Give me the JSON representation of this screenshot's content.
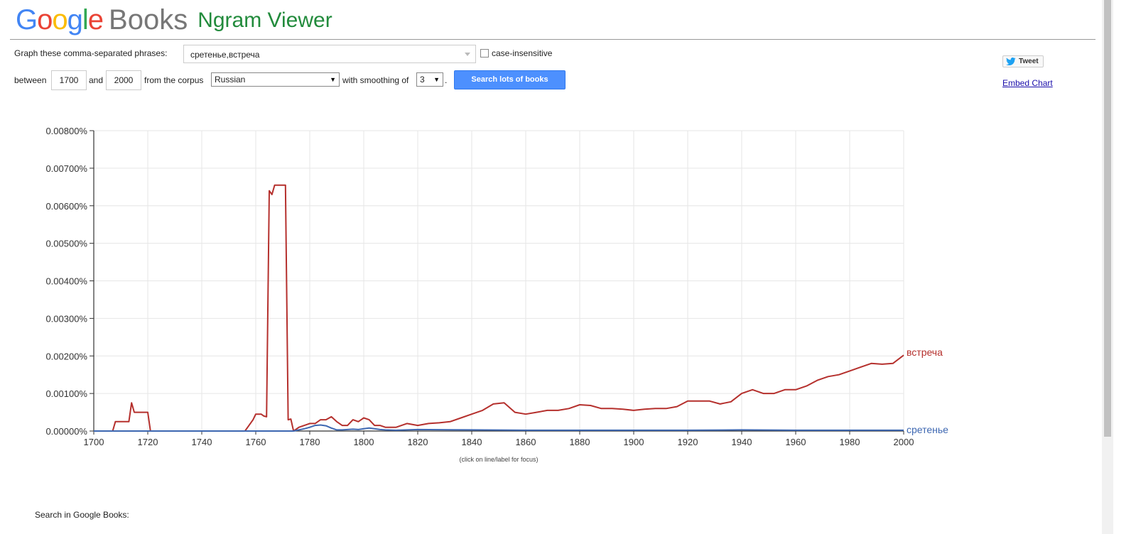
{
  "brand": {
    "google_letters": [
      {
        "ch": "G",
        "color": "#4285F4"
      },
      {
        "ch": "o",
        "color": "#EA4335"
      },
      {
        "ch": "o",
        "color": "#FBBC05"
      },
      {
        "ch": "g",
        "color": "#4285F4"
      },
      {
        "ch": "l",
        "color": "#34A853"
      },
      {
        "ch": "e",
        "color": "#EA4335"
      }
    ],
    "books": "Books",
    "app_title": "Ngram Viewer"
  },
  "form": {
    "phrases_label": "Graph these comma-separated phrases:",
    "phrases_value": "сретенье,встреча",
    "case_label": "case-insensitive",
    "between_label": "between",
    "start_year": "1700",
    "and_label": "and",
    "end_year": "2000",
    "corpus_label": "from the corpus",
    "corpus_value": "Russian",
    "smoothing_label": "with smoothing of",
    "smoothing_value": "3",
    "smoothing_period": ".",
    "search_button": "Search lots of books"
  },
  "share": {
    "tweet_label": "Tweet",
    "embed_label": "Embed Chart"
  },
  "chart_hint": "(click on line/label for focus)",
  "footer_label": "Search in Google Books:",
  "chart_data": {
    "type": "line",
    "title": "",
    "xlabel": "",
    "ylabel": "",
    "xlim": [
      1700,
      2000
    ],
    "ylim": [
      0,
      0.008
    ],
    "y_tick_labels": [
      "0.00000%",
      "0.00100%",
      "0.00200%",
      "0.00300%",
      "0.00400%",
      "0.00500%",
      "0.00600%",
      "0.00700%",
      "0.00800%"
    ],
    "y_ticks": [
      0,
      0.001,
      0.002,
      0.003,
      0.004,
      0.005,
      0.006,
      0.007,
      0.008
    ],
    "x_ticks": [
      1700,
      1720,
      1740,
      1760,
      1780,
      1800,
      1820,
      1840,
      1860,
      1880,
      1900,
      1920,
      1940,
      1960,
      1980,
      2000
    ],
    "grid": true,
    "legend": "labels at line ends",
    "series": [
      {
        "name": "встреча",
        "color": "#b5302d",
        "x": [
          1700,
          1707,
          1708,
          1713,
          1714,
          1715,
          1720,
          1721,
          1756,
          1757,
          1759,
          1760,
          1761,
          1762,
          1763,
          1764,
          1765,
          1766,
          1767,
          1768,
          1769,
          1770,
          1771,
          1772,
          1773,
          1774,
          1776,
          1778,
          1780,
          1782,
          1784,
          1786,
          1788,
          1790,
          1792,
          1794,
          1796,
          1798,
          1800,
          1802,
          1804,
          1806,
          1808,
          1812,
          1816,
          1820,
          1824,
          1828,
          1832,
          1836,
          1840,
          1844,
          1848,
          1852,
          1856,
          1860,
          1864,
          1868,
          1872,
          1876,
          1880,
          1884,
          1888,
          1892,
          1896,
          1900,
          1904,
          1908,
          1912,
          1916,
          1920,
          1924,
          1928,
          1932,
          1936,
          1940,
          1944,
          1948,
          1952,
          1956,
          1960,
          1964,
          1968,
          1972,
          1976,
          1980,
          1984,
          1988,
          1992,
          1996,
          2000
        ],
        "y": [
          0,
          0,
          0.00025,
          0.00025,
          0.00075,
          0.0005,
          0.0005,
          0,
          0,
          0.0001,
          0.0003,
          0.00045,
          0.00045,
          0.00045,
          0.0004,
          0.00038,
          0.0064,
          0.0063,
          0.00655,
          0.00655,
          0.00655,
          0.00655,
          0.00655,
          0.0003,
          0.00032,
          0,
          0.0001,
          0.00015,
          0.0002,
          0.0002,
          0.0003,
          0.0003,
          0.00038,
          0.00025,
          0.00015,
          0.00015,
          0.0003,
          0.00025,
          0.00035,
          0.0003,
          0.00015,
          0.00015,
          0.0001,
          0.0001,
          0.0002,
          0.00015,
          0.0002,
          0.00022,
          0.00025,
          0.00035,
          0.00045,
          0.00055,
          0.00072,
          0.00075,
          0.0005,
          0.00045,
          0.0005,
          0.00055,
          0.00055,
          0.0006,
          0.0007,
          0.00068,
          0.0006,
          0.0006,
          0.00058,
          0.00055,
          0.00058,
          0.0006,
          0.0006,
          0.00065,
          0.0008,
          0.0008,
          0.0008,
          0.00072,
          0.00078,
          0.001,
          0.0011,
          0.001,
          0.001,
          0.0011,
          0.0011,
          0.0012,
          0.00135,
          0.00145,
          0.0015,
          0.0016,
          0.0017,
          0.0018,
          0.00178,
          0.0018,
          0.00202
        ]
      },
      {
        "name": "сретенье",
        "color": "#3d67b1",
        "x": [
          1700,
          1774,
          1776,
          1778,
          1780,
          1782,
          1784,
          1786,
          1788,
          1790,
          1792,
          1794,
          1796,
          1798,
          1800,
          1802,
          1804,
          1806,
          1808,
          1812,
          1816,
          1820,
          1840,
          1860,
          1880,
          1900,
          1920,
          1940,
          1960,
          1980,
          2000
        ],
        "y": [
          0,
          0,
          3e-05,
          6e-05,
          0.0001,
          0.00015,
          0.00016,
          0.00014,
          8e-05,
          3e-05,
          3e-05,
          4e-05,
          5e-05,
          4e-05,
          6e-05,
          8e-05,
          6e-05,
          4e-05,
          3e-05,
          2e-05,
          3e-05,
          4e-05,
          3e-05,
          2e-05,
          2e-05,
          2e-05,
          2e-05,
          3e-05,
          2e-05,
          2e-05,
          2e-05
        ]
      }
    ]
  }
}
